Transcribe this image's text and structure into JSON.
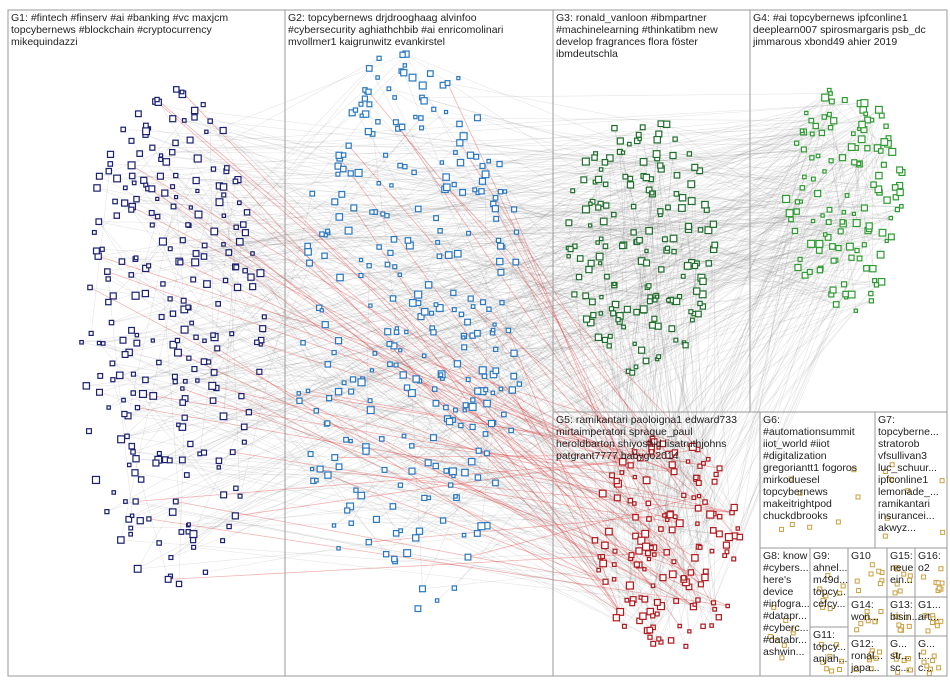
{
  "groups": [
    {
      "lines": [
        "G1: #fintech #finserv #ai #banking #vc maxjcm",
        "topcybernews #blockchain #cryptocurrency",
        "mikequindazzi"
      ]
    },
    {
      "lines": [
        "G2: topcybernews drjdrooghaag alvinfoo",
        "#cybersecurity aghiathchbib #ai enricomolinari",
        "mvollmer1 kaigrunwitz evankirstel"
      ]
    },
    {
      "lines": [
        "G3: ronald_vanloon #ibmpartner",
        "#machinelearning #thinkatibm new",
        "develop fragrances flora föster",
        "ibmdeutschla"
      ]
    },
    {
      "lines": [
        "G4: #ai topcybernews ipfconline1",
        "deeplearn007 spirosmargaris psb_dc",
        "jimmarous xbond49 ahier 2019"
      ]
    },
    {
      "lines": [
        "G5: ramikantari paoloigna1 edward733",
        "mirtaimperatori sprague_paul",
        "heroldbarton shiyoshid lisatruthjohns",
        "patgrant7777 babygo2014"
      ]
    },
    {
      "lines": [
        "G6:",
        "#automationsummit",
        "iiot_world #iiot",
        "#digitalization",
        "gregoriantt1 fogoros",
        "mirkoduesel",
        "topcybernews",
        "makeitrightpod",
        "chuckdbrooks"
      ]
    },
    {
      "lines": [
        "G7:",
        "topcyberne...",
        "stratorob",
        "vfsullivan3",
        "luc_schuur...",
        "ipfconline1",
        "lemonade_...",
        "ramikantari",
        "insurancei...",
        "akwyz..."
      ]
    },
    {
      "lines": [
        "G8: know",
        "#cybers...",
        "here's",
        "device",
        "#infogra...",
        "#datapr...",
        "#cyberc...",
        "#databr...",
        "ashwin..."
      ]
    },
    {
      "lines": [
        "G9:",
        "ahnel...",
        "m49d...",
        "topcy...",
        "cefcy..."
      ]
    },
    {
      "lines": [
        "G10"
      ]
    },
    {
      "lines": [
        "G15:",
        "neue",
        "ein..."
      ]
    },
    {
      "lines": [
        "G16:",
        "o2"
      ]
    },
    {
      "lines": [
        "G11:",
        "topcy...",
        "anjah..."
      ]
    },
    {
      "lines": [
        "G14:",
        "won..."
      ]
    },
    {
      "lines": [
        "G13:",
        "bisin..."
      ]
    },
    {
      "lines": [
        "G1...",
        "art..."
      ]
    },
    {
      "lines": [
        "G12:",
        "ronal...",
        "japa..."
      ]
    },
    {
      "lines": [
        "G...",
        "str...",
        "sc..."
      ]
    },
    {
      "lines": [
        "G...",
        "t...",
        "c..."
      ]
    }
  ]
}
